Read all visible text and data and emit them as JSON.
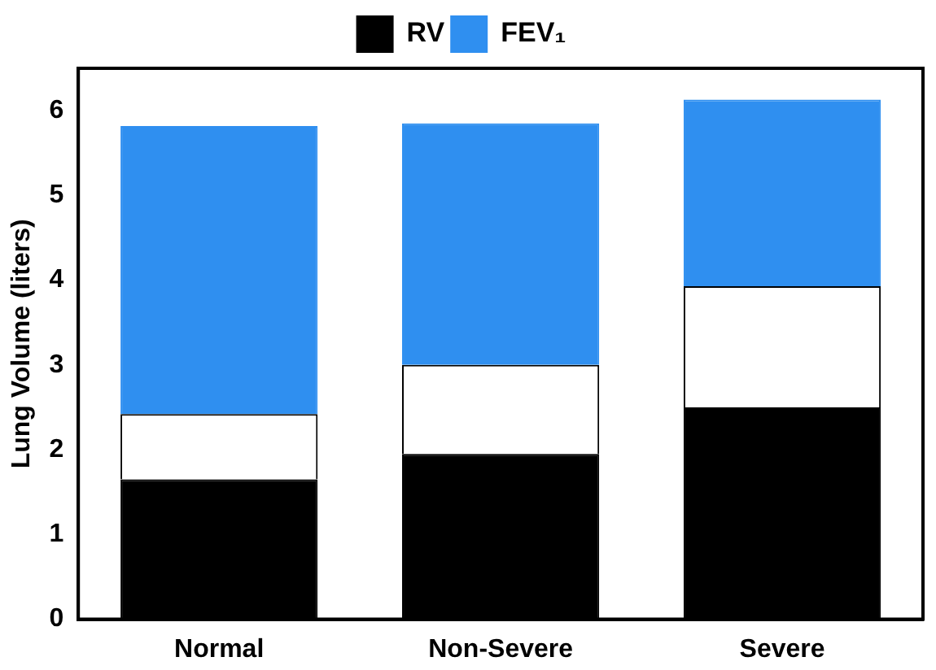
{
  "chart_data": {
    "type": "bar",
    "stacked": true,
    "ylabel": "Lung Volume (liters)",
    "categories": [
      "Normal",
      "Non-Severe",
      "Severe"
    ],
    "series": [
      {
        "name": "RV",
        "color": "#000000",
        "values": [
          1.65,
          1.95,
          2.5
        ]
      },
      {
        "color": "#ffffff",
        "values": [
          0.77,
          1.05,
          1.43
        ]
      },
      {
        "name": "FEV₁",
        "color": "#2f8ff0",
        "values": [
          3.4,
          2.85,
          2.2
        ]
      }
    ],
    "ylim": [
      0,
      6.5
    ],
    "yticks": [
      0,
      1,
      2,
      3,
      4,
      5,
      6
    ],
    "grid": false,
    "legend": "top"
  }
}
